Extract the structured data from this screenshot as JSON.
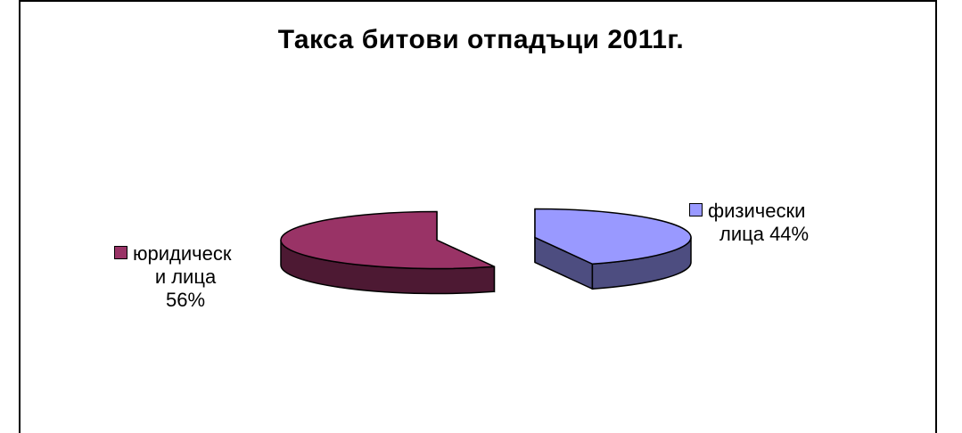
{
  "chart_data": {
    "type": "pie",
    "title": "Такса битови отпадъци 2011г.",
    "categories": [
      "юридическ и лица",
      "физически лица"
    ],
    "values": [
      56,
      44
    ],
    "labels": [
      {
        "lines": [
          "юридическ",
          "и лица",
          "56%"
        ]
      },
      {
        "lines": [
          "физически",
          "лица 44%"
        ]
      }
    ],
    "colors": {
      "top": [
        "#993366",
        "#9999ff"
      ],
      "side": [
        "#4d1933",
        "#4d4d80"
      ]
    }
  }
}
